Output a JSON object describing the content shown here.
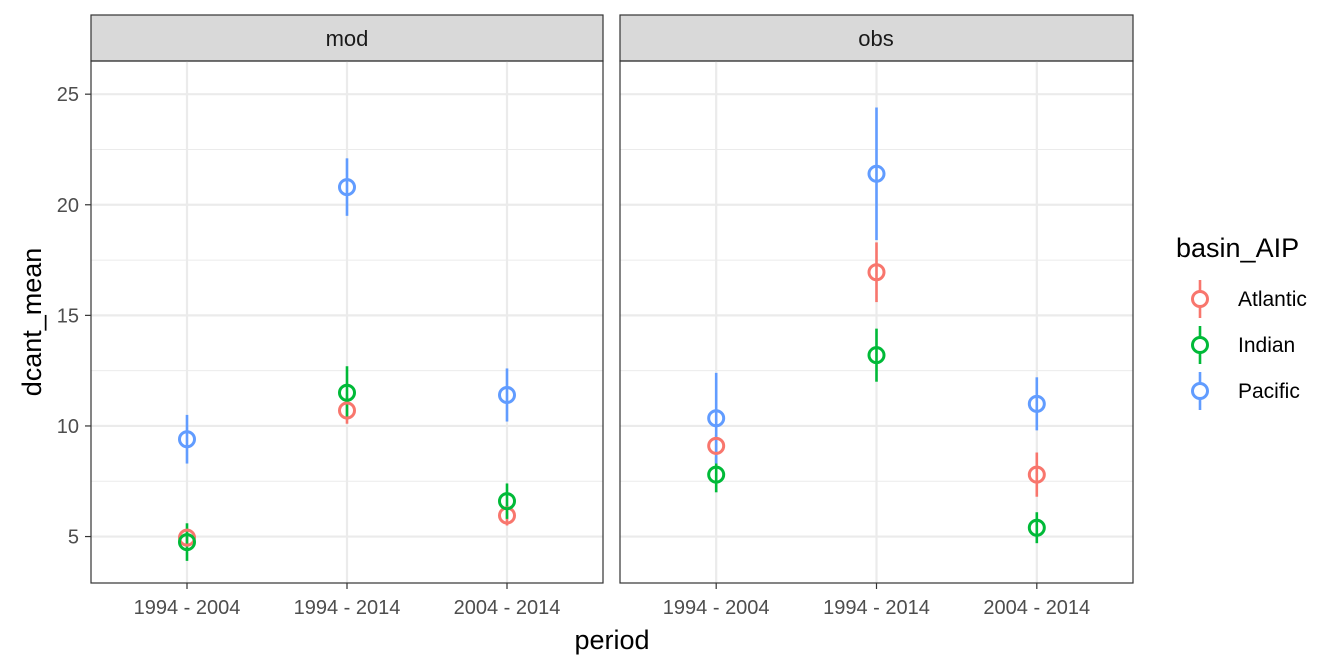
{
  "chart_data": {
    "type": "scatter",
    "subtype": "pointrange-facet",
    "xlabel": "period",
    "ylabel": "dcant_mean",
    "categories": [
      "1994 - 2004",
      "1994 - 2014",
      "2004 - 2014"
    ],
    "ylim": [
      2.9,
      26.5
    ],
    "yticks": [
      5,
      10,
      15,
      20,
      25
    ],
    "grid": true,
    "legend": {
      "title": "basin_AIP",
      "placement": "right",
      "entries": [
        {
          "name": "Atlantic",
          "color": "#F8766D"
        },
        {
          "name": "Indian",
          "color": "#00BA38"
        },
        {
          "name": "Pacific",
          "color": "#619CFF"
        }
      ]
    },
    "panels": [
      {
        "label": "mod",
        "series": [
          {
            "name": "Atlantic",
            "values": [
              4.95,
              10.7,
              5.95
            ],
            "lower": [
              4.6,
              10.1,
              5.5
            ],
            "upper": [
              5.3,
              11.3,
              6.4
            ]
          },
          {
            "name": "Indian",
            "values": [
              4.75,
              11.5,
              6.6
            ],
            "lower": [
              3.9,
              10.3,
              5.8
            ],
            "upper": [
              5.6,
              12.7,
              7.4
            ]
          },
          {
            "name": "Pacific",
            "values": [
              9.4,
              20.8,
              11.4
            ],
            "lower": [
              8.3,
              19.5,
              10.2
            ],
            "upper": [
              10.5,
              22.1,
              12.6
            ]
          }
        ]
      },
      {
        "label": "obs",
        "series": [
          {
            "name": "Atlantic",
            "values": [
              9.1,
              16.95,
              7.8
            ],
            "lower": [
              8.6,
              15.6,
              6.8
            ],
            "upper": [
              9.6,
              18.3,
              8.8
            ]
          },
          {
            "name": "Indian",
            "values": [
              7.8,
              13.2,
              5.4
            ],
            "lower": [
              7.0,
              12.0,
              4.7
            ],
            "upper": [
              8.6,
              14.4,
              6.1
            ]
          },
          {
            "name": "Pacific",
            "values": [
              10.35,
              21.4,
              11.0
            ],
            "lower": [
              8.3,
              18.4,
              9.8
            ],
            "upper": [
              12.4,
              24.4,
              12.2
            ]
          }
        ]
      }
    ]
  }
}
